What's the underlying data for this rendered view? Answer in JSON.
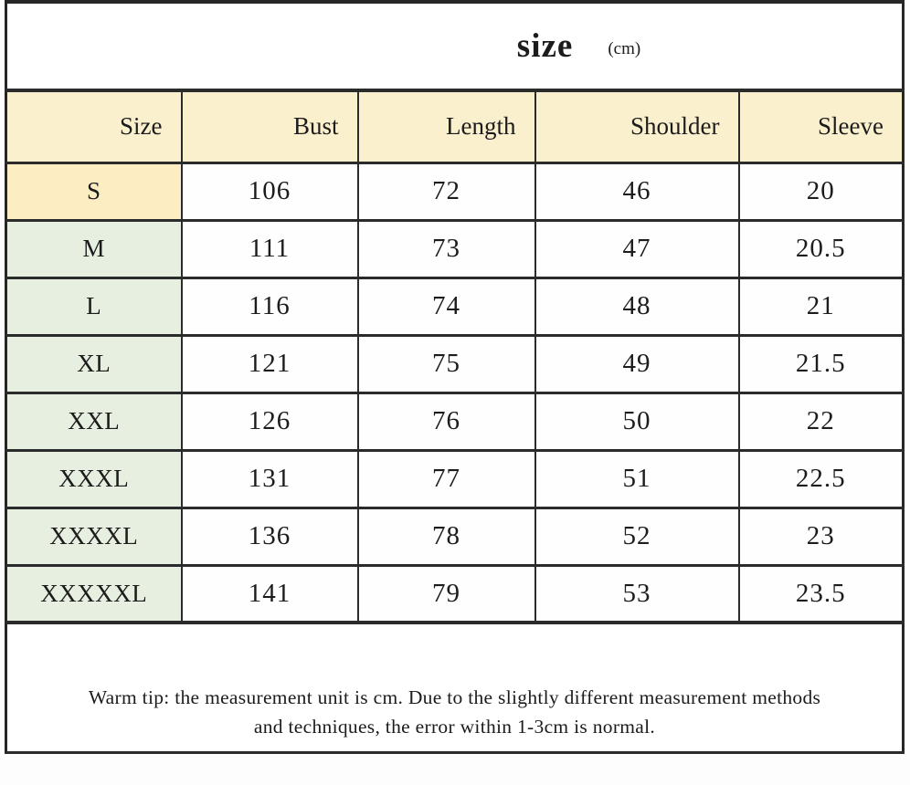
{
  "title": {
    "main": "size",
    "unit": "(cm)"
  },
  "chart_data": {
    "type": "table",
    "title": "size (cm)",
    "columns": [
      "Size",
      "Bust",
      "Length",
      "Shoulder",
      "Sleeve"
    ],
    "rows": [
      [
        "S",
        "106",
        "72",
        "46",
        "20"
      ],
      [
        "M",
        "111",
        "73",
        "47",
        "20.5"
      ],
      [
        "L",
        "116",
        "74",
        "48",
        "21"
      ],
      [
        "XL",
        "121",
        "75",
        "49",
        "21.5"
      ],
      [
        "XXL",
        "126",
        "76",
        "50",
        "22"
      ],
      [
        "XXXL",
        "131",
        "77",
        "51",
        "22.5"
      ],
      [
        "XXXXL",
        "136",
        "78",
        "52",
        "23"
      ],
      [
        "XXXXXL",
        "141",
        "79",
        "53",
        "23.5"
      ]
    ],
    "unit": "cm",
    "layout": {
      "header_alignment": "right",
      "data_alignment": "center",
      "grid": true
    }
  },
  "footer": {
    "line1": "Warm tip: the measurement unit is cm. Due to the slightly different measurement methods",
    "line2": "and techniques, the error within 1-3cm is normal."
  },
  "colors": {
    "header_bg": "#faf0cd",
    "size_s_bg": "#fceec2",
    "size_green_bg": "#e6efe0",
    "border": "#2b2b2b",
    "cell_bg": "#fefefe",
    "text": "#1c1c1c"
  }
}
